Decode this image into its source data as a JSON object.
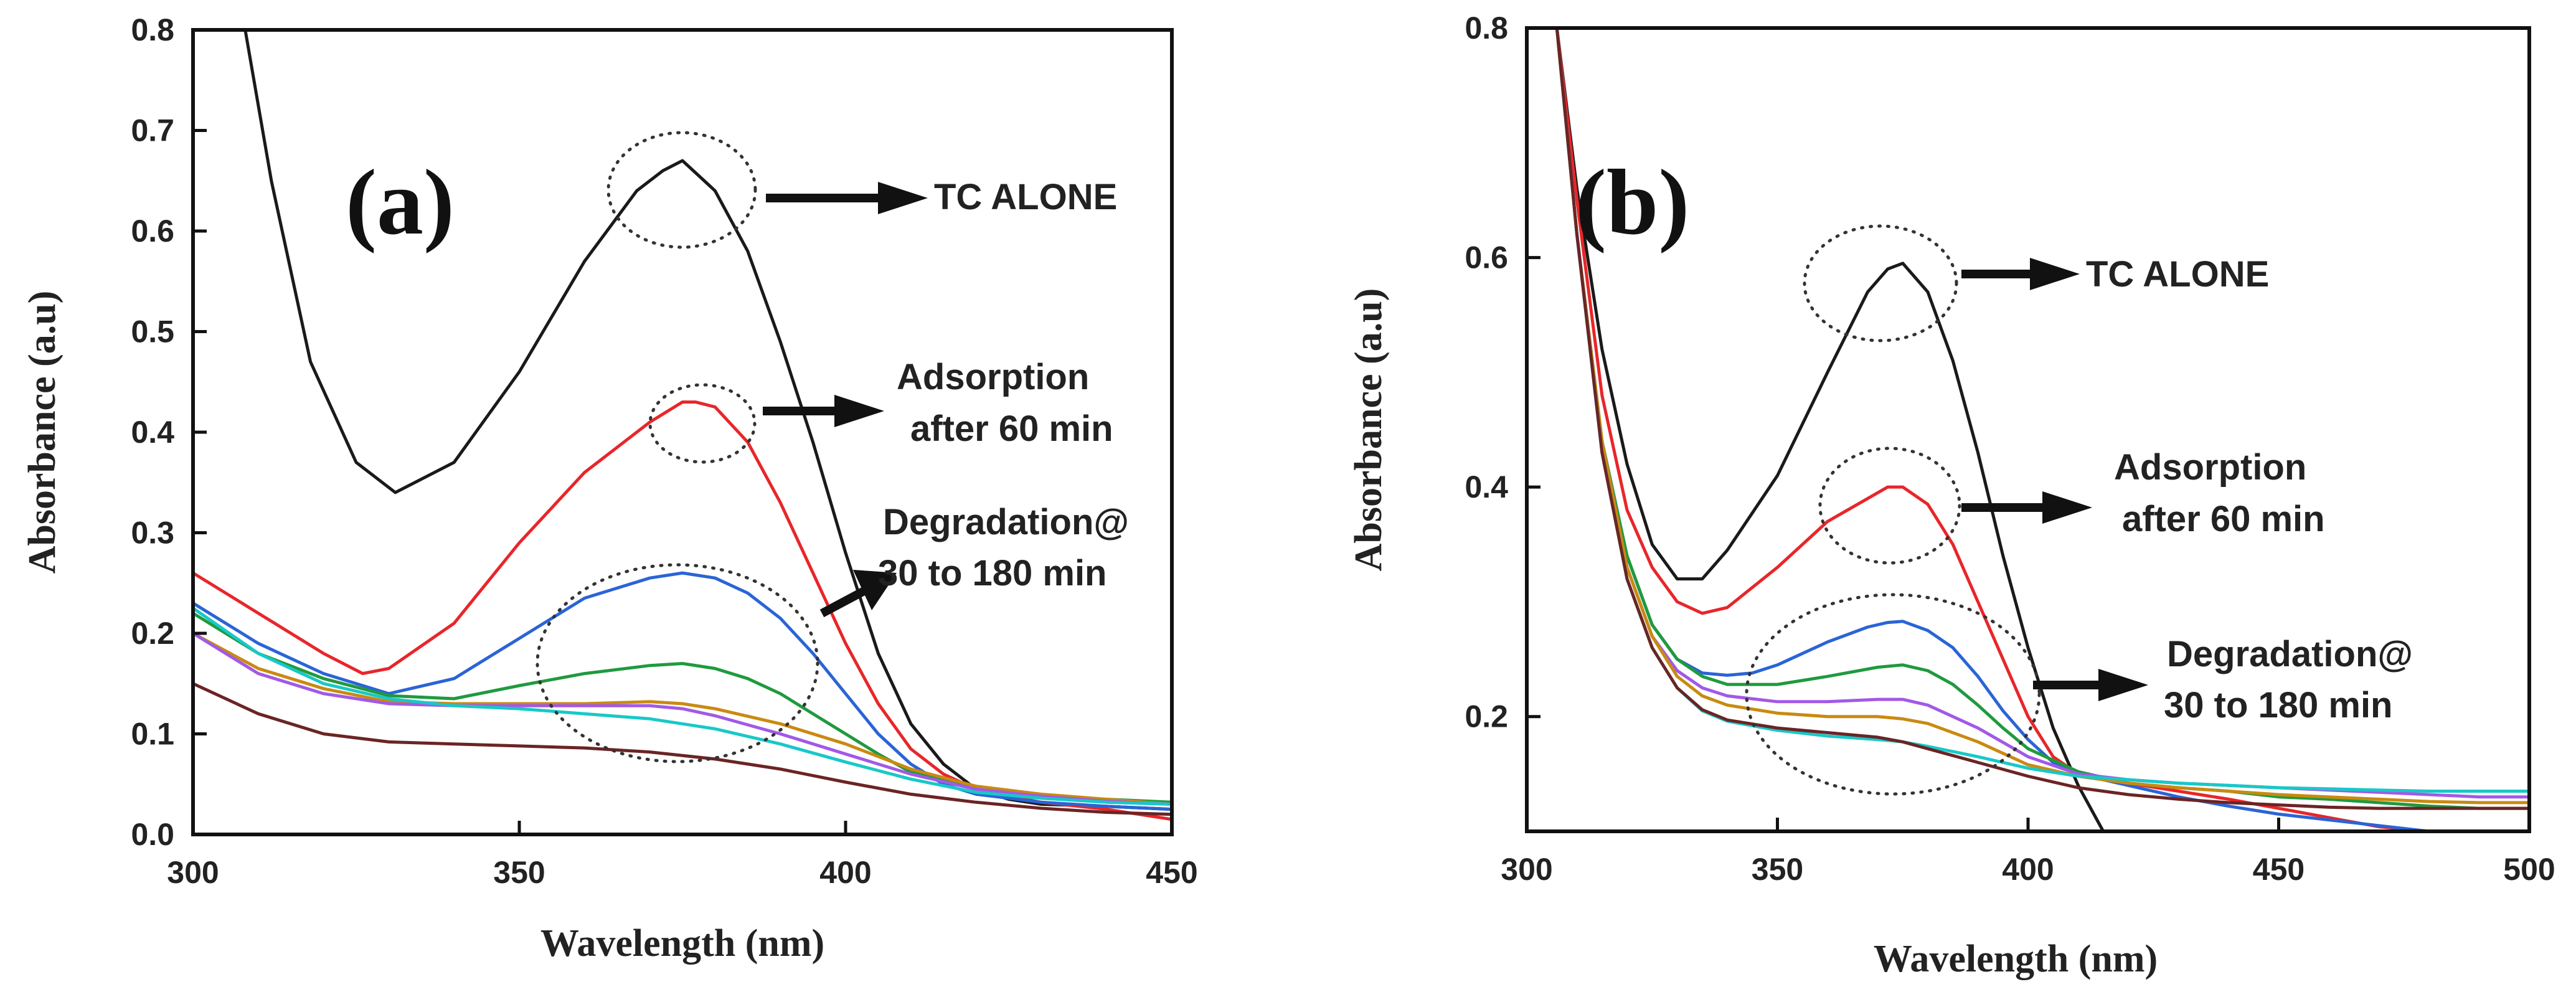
{
  "chart_data": [
    {
      "type": "line",
      "panel_label": "(a)",
      "xlabel": "Wavelength (nm)",
      "ylabel": "Absorbance (a.u)",
      "xlim": [
        300,
        450
      ],
      "ylim": [
        0.0,
        0.8
      ],
      "xticks": [
        300,
        350,
        400,
        450
      ],
      "yticks": [
        0.0,
        0.1,
        0.2,
        0.3,
        0.4,
        0.5,
        0.6,
        0.7,
        0.8
      ],
      "ytick_labels": [
        "0.0",
        "0.1",
        "0.2",
        "0.3",
        "0.4",
        "0.5",
        "0.6",
        "0.7",
        "0.8"
      ],
      "annotations": [
        {
          "text": "TC ALONE",
          "series": "TC alone"
        },
        {
          "text": "Adsorption",
          "series": "Adsorption after 60 min"
        },
        {
          "text": "after 60 min",
          "series": "Adsorption after 60 min"
        },
        {
          "text": "Degradation@",
          "series": "Degradation"
        },
        {
          "text": "30 to 180 min",
          "series": "Degradation"
        }
      ],
      "series": [
        {
          "name": "TC alone",
          "color": "#1a1a1a",
          "x": [
            308,
            312,
            318,
            325,
            331,
            340,
            350,
            360,
            368,
            372,
            375,
            380,
            385,
            390,
            395,
            400,
            405,
            410,
            415,
            420,
            425,
            430,
            440,
            450
          ],
          "y": [
            0.8,
            0.65,
            0.47,
            0.37,
            0.34,
            0.37,
            0.46,
            0.57,
            0.64,
            0.66,
            0.67,
            0.64,
            0.58,
            0.49,
            0.39,
            0.28,
            0.18,
            0.11,
            0.07,
            0.045,
            0.035,
            0.03,
            0.028,
            0.025
          ]
        },
        {
          "name": "Adsorption after 60 min",
          "color": "#e8262a",
          "x": [
            300,
            310,
            320,
            326,
            330,
            340,
            350,
            360,
            370,
            375,
            377,
            380,
            385,
            390,
            395,
            400,
            405,
            410,
            415,
            420,
            425,
            430,
            440,
            450
          ],
          "y": [
            0.26,
            0.22,
            0.18,
            0.16,
            0.165,
            0.21,
            0.29,
            0.36,
            0.41,
            0.43,
            0.43,
            0.425,
            0.39,
            0.33,
            0.26,
            0.19,
            0.13,
            0.085,
            0.06,
            0.045,
            0.038,
            0.032,
            0.025,
            0.015
          ]
        },
        {
          "name": "Degradation 30 min",
          "color": "#2a64d6",
          "x": [
            300,
            310,
            320,
            330,
            340,
            350,
            360,
            370,
            375,
            380,
            385,
            390,
            395,
            400,
            405,
            410,
            415,
            420,
            430,
            440,
            450
          ],
          "y": [
            0.23,
            0.19,
            0.16,
            0.14,
            0.155,
            0.195,
            0.235,
            0.255,
            0.26,
            0.255,
            0.24,
            0.215,
            0.18,
            0.14,
            0.1,
            0.07,
            0.05,
            0.04,
            0.032,
            0.028,
            0.025
          ]
        },
        {
          "name": "Degradation 60 min",
          "color": "#1f9a3e",
          "x": [
            300,
            310,
            320,
            330,
            340,
            350,
            360,
            370,
            375,
            380,
            385,
            390,
            395,
            400,
            405,
            410,
            420,
            430,
            440,
            450
          ],
          "y": [
            0.22,
            0.18,
            0.155,
            0.138,
            0.135,
            0.148,
            0.16,
            0.168,
            0.17,
            0.165,
            0.155,
            0.14,
            0.12,
            0.1,
            0.08,
            0.062,
            0.045,
            0.038,
            0.035,
            0.032
          ]
        },
        {
          "name": "Degradation 90 min",
          "color": "#c98a10",
          "x": [
            300,
            310,
            320,
            330,
            340,
            350,
            360,
            370,
            375,
            380,
            390,
            400,
            410,
            420,
            430,
            440,
            450
          ],
          "y": [
            0.2,
            0.165,
            0.145,
            0.132,
            0.13,
            0.13,
            0.13,
            0.132,
            0.13,
            0.125,
            0.11,
            0.09,
            0.065,
            0.048,
            0.04,
            0.035,
            0.03
          ]
        },
        {
          "name": "Degradation 120 min",
          "color": "#a259e6",
          "x": [
            300,
            310,
            320,
            330,
            340,
            350,
            360,
            370,
            375,
            380,
            390,
            400,
            410,
            420,
            430,
            440,
            450
          ],
          "y": [
            0.2,
            0.16,
            0.14,
            0.13,
            0.128,
            0.128,
            0.128,
            0.128,
            0.125,
            0.118,
            0.1,
            0.08,
            0.06,
            0.045,
            0.038,
            0.033,
            0.03
          ]
        },
        {
          "name": "Degradation 150 min",
          "color": "#18c8c8",
          "x": [
            300,
            310,
            320,
            330,
            340,
            350,
            360,
            370,
            380,
            390,
            400,
            410,
            420,
            430,
            440,
            450
          ],
          "y": [
            0.225,
            0.18,
            0.15,
            0.135,
            0.128,
            0.125,
            0.12,
            0.115,
            0.105,
            0.09,
            0.072,
            0.055,
            0.042,
            0.036,
            0.032,
            0.03
          ]
        },
        {
          "name": "Degradation 180 min",
          "color": "#6b2424",
          "x": [
            300,
            310,
            320,
            330,
            340,
            350,
            360,
            370,
            380,
            390,
            400,
            410,
            420,
            430,
            440,
            450
          ],
          "y": [
            0.15,
            0.12,
            0.1,
            0.092,
            0.09,
            0.088,
            0.086,
            0.082,
            0.075,
            0.065,
            0.052,
            0.04,
            0.032,
            0.026,
            0.022,
            0.02
          ]
        }
      ]
    },
    {
      "type": "line",
      "panel_label": "(b)",
      "xlabel": "Wavelength (nm)",
      "ylabel": "Absorbance (a.u)",
      "xlim": [
        300,
        500
      ],
      "ylim": [
        0.1,
        0.8
      ],
      "xticks": [
        300,
        350,
        400,
        450,
        500
      ],
      "yticks": [
        0.2,
        0.4,
        0.6,
        0.8
      ],
      "ytick_labels": [
        "0.2",
        "0.4",
        "0.6",
        "0.8"
      ],
      "annotations": [
        {
          "text": "TC ALONE",
          "series": "TC alone"
        },
        {
          "text": "Adsorption",
          "series": "Adsorption after 60 min"
        },
        {
          "text": "after 60 min",
          "series": "Adsorption after 60 min"
        },
        {
          "text": "Degradation@",
          "series": "Degradation"
        },
        {
          "text": "30 to 180 min",
          "series": "Degradation"
        }
      ],
      "series": [
        {
          "name": "TC alone",
          "color": "#1a1a1a",
          "x": [
            306,
            310,
            315,
            320,
            325,
            330,
            335,
            340,
            350,
            360,
            368,
            372,
            375,
            380,
            385,
            390,
            395,
            400,
            405,
            410,
            415
          ],
          "y": [
            0.8,
            0.66,
            0.52,
            0.42,
            0.35,
            0.32,
            0.32,
            0.345,
            0.41,
            0.5,
            0.57,
            0.59,
            0.595,
            0.57,
            0.51,
            0.43,
            0.34,
            0.26,
            0.19,
            0.14,
            0.1
          ]
        },
        {
          "name": "Adsorption after 60 min",
          "color": "#e8262a",
          "x": [
            306,
            310,
            315,
            320,
            325,
            330,
            335,
            340,
            350,
            360,
            368,
            372,
            375,
            380,
            385,
            390,
            395,
            400,
            405,
            410,
            415,
            420,
            430,
            440,
            450,
            460,
            470,
            480,
            490,
            500
          ],
          "y": [
            0.8,
            0.65,
            0.48,
            0.38,
            0.33,
            0.3,
            0.29,
            0.295,
            0.33,
            0.37,
            0.39,
            0.4,
            0.4,
            0.385,
            0.35,
            0.3,
            0.25,
            0.2,
            0.165,
            0.15,
            0.145,
            0.142,
            0.135,
            0.128,
            0.12,
            0.112,
            0.104,
            0.1,
            0.1,
            0.1
          ]
        },
        {
          "name": "Degradation 30 min",
          "color": "#2a64d6",
          "x": [
            306,
            310,
            315,
            320,
            325,
            330,
            335,
            340,
            345,
            350,
            360,
            368,
            372,
            375,
            380,
            385,
            390,
            395,
            400,
            405,
            410,
            420,
            430,
            440,
            450,
            460,
            470,
            480,
            490,
            500
          ],
          "y": [
            0.8,
            0.62,
            0.44,
            0.34,
            0.28,
            0.25,
            0.238,
            0.236,
            0.238,
            0.245,
            0.265,
            0.278,
            0.282,
            0.283,
            0.275,
            0.26,
            0.235,
            0.205,
            0.18,
            0.16,
            0.15,
            0.14,
            0.13,
            0.122,
            0.115,
            0.11,
            0.105,
            0.1,
            0.1,
            0.1
          ]
        },
        {
          "name": "Degradation 60 min",
          "color": "#1f9a3e",
          "x": [
            306,
            310,
            315,
            320,
            325,
            330,
            335,
            340,
            350,
            360,
            370,
            375,
            380,
            385,
            390,
            395,
            400,
            410,
            420,
            430,
            440,
            450,
            460,
            470,
            480,
            490,
            500
          ],
          "y": [
            0.8,
            0.62,
            0.44,
            0.34,
            0.28,
            0.25,
            0.235,
            0.228,
            0.228,
            0.235,
            0.243,
            0.245,
            0.24,
            0.228,
            0.21,
            0.19,
            0.172,
            0.152,
            0.142,
            0.138,
            0.135,
            0.13,
            0.128,
            0.125,
            0.122,
            0.12,
            0.12
          ]
        },
        {
          "name": "Degradation 90 min",
          "color": "#a259e6",
          "x": [
            306,
            310,
            315,
            320,
            325,
            330,
            335,
            340,
            350,
            360,
            370,
            375,
            380,
            390,
            400,
            410,
            420,
            430,
            440,
            450,
            460,
            470,
            480,
            490,
            500
          ],
          "y": [
            0.8,
            0.62,
            0.44,
            0.33,
            0.27,
            0.24,
            0.225,
            0.218,
            0.213,
            0.213,
            0.215,
            0.215,
            0.21,
            0.19,
            0.165,
            0.15,
            0.145,
            0.142,
            0.14,
            0.138,
            0.136,
            0.134,
            0.132,
            0.13,
            0.13
          ]
        },
        {
          "name": "Degradation 120 min",
          "color": "#c98a10",
          "x": [
            306,
            310,
            315,
            320,
            325,
            330,
            335,
            340,
            350,
            360,
            370,
            375,
            380,
            390,
            400,
            410,
            420,
            430,
            440,
            450,
            460,
            470,
            480,
            490,
            500
          ],
          "y": [
            0.8,
            0.62,
            0.44,
            0.33,
            0.27,
            0.235,
            0.218,
            0.21,
            0.203,
            0.2,
            0.2,
            0.198,
            0.194,
            0.178,
            0.158,
            0.148,
            0.142,
            0.138,
            0.135,
            0.132,
            0.13,
            0.128,
            0.126,
            0.125,
            0.125
          ]
        },
        {
          "name": "Degradation 150 min",
          "color": "#18c8c8",
          "x": [
            306,
            310,
            315,
            320,
            325,
            330,
            335,
            340,
            350,
            360,
            370,
            375,
            380,
            390,
            400,
            410,
            420,
            430,
            440,
            450,
            460,
            470,
            480,
            490,
            500
          ],
          "y": [
            0.8,
            0.62,
            0.43,
            0.32,
            0.26,
            0.225,
            0.205,
            0.196,
            0.188,
            0.183,
            0.18,
            0.178,
            0.174,
            0.165,
            0.155,
            0.148,
            0.145,
            0.142,
            0.14,
            0.138,
            0.137,
            0.136,
            0.135,
            0.135,
            0.135
          ]
        },
        {
          "name": "Degradation 180 min",
          "color": "#6b2424",
          "x": [
            306,
            310,
            315,
            320,
            325,
            330,
            335,
            340,
            350,
            360,
            370,
            375,
            380,
            390,
            400,
            410,
            420,
            430,
            440,
            450,
            460,
            470,
            480,
            490,
            500
          ],
          "y": [
            0.8,
            0.62,
            0.43,
            0.32,
            0.26,
            0.225,
            0.206,
            0.197,
            0.19,
            0.186,
            0.182,
            0.178,
            0.172,
            0.16,
            0.148,
            0.138,
            0.132,
            0.128,
            0.125,
            0.123,
            0.121,
            0.12,
            0.12,
            0.12,
            0.12
          ]
        }
      ]
    }
  ]
}
